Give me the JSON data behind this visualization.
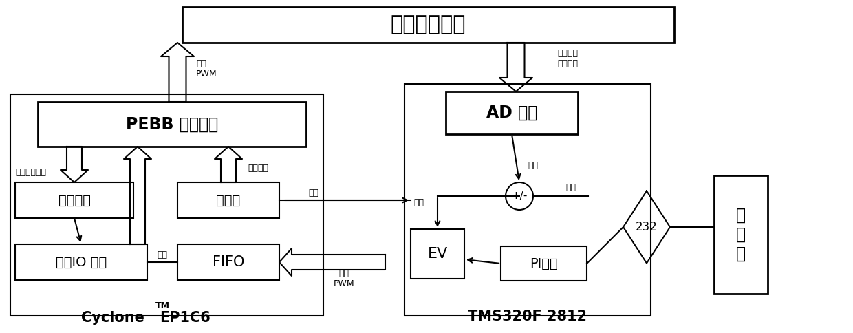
{
  "title": "变流器主电路",
  "pebb_label": "PEBB 驱动电路",
  "ad_label": "AD 采样",
  "signal_label": "信号采集",
  "io_label": "外部IO 控制",
  "power_label": "功率管",
  "fifo_label": "FIFO",
  "ev_label": "EV",
  "pi_label": "PI计算",
  "sum_label": "+/-",
  "cyclone_label": "Cyclone",
  "cyclone_tm": "TM",
  "cyclone_ep": "EP1C6",
  "tms_label": "TMS320F 2812",
  "host_label": "上\n位\n机",
  "rs232_label": "232",
  "pwm1_label": "第二\nPWM",
  "pwm2_label": "第一\nPWM",
  "work_status": "工作状态信号",
  "protect_signal": "保护信号",
  "protect": "保护",
  "feedback": "反馈",
  "lock": "闭锁",
  "given": "给定",
  "phase_shift": "移相",
  "voltage_signal": "电压信号",
  "current_signal": "电流信号",
  "bg_color": "#ffffff"
}
